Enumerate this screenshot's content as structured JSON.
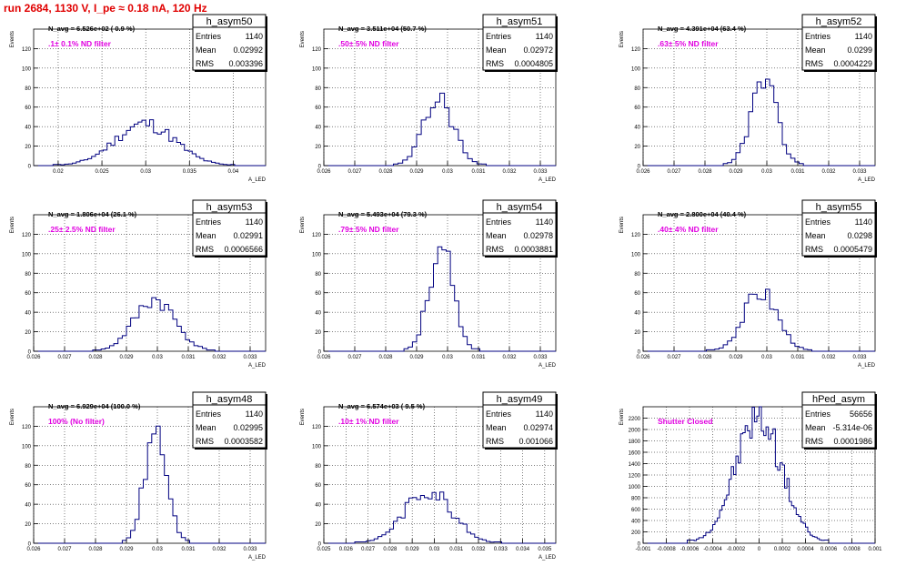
{
  "page_title": "run 2684,  1130 V, I_pe ≈ 0.18 nA, 120 Hz",
  "colors": {
    "title": "#e00000",
    "histogram": "#000080",
    "filter_label": "#e000e0",
    "grid": "#000000"
  },
  "chart_data": [
    {
      "type": "histogram",
      "name": "h_asym50",
      "ylabel": "Events",
      "xlabel": "A_LED",
      "stats": {
        "entries_label": "Entries",
        "entries": "1140",
        "mean_label": "Mean",
        "mean": "0.02992",
        "rms_label": "RMS",
        "rms": "0.003396"
      },
      "navg": "N_avg = 6.526e+02 ( 0.9 %)",
      "filter": ".1± 0.1% ND filter",
      "xlim": [
        0.0172,
        0.0437
      ],
      "ylim": [
        0,
        140
      ],
      "xticks": [
        0.02,
        0.025,
        0.03,
        0.035,
        0.04
      ],
      "xtick_labels": [
        "0.02",
        "0.025",
        "0.03",
        "0.035",
        "0.04"
      ],
      "yticks": [
        0,
        20,
        40,
        60,
        80,
        100,
        120
      ],
      "mean": 0.02992,
      "rms": 0.003396,
      "peak": 43,
      "bins": 60,
      "seed": 11
    },
    {
      "type": "histogram",
      "name": "h_asym51",
      "ylabel": "Events",
      "xlabel": "A_LED",
      "stats": {
        "entries_label": "Entries",
        "entries": "1140",
        "mean_label": "Mean",
        "mean": "0.02972",
        "rms_label": "RMS",
        "rms": "0.0004805"
      },
      "navg": "N_avg = 3.511e+04 (50.7 %)",
      "filter": ".50± 5% ND filter",
      "xlim": [
        0.026,
        0.0335
      ],
      "ylim": [
        0,
        140
      ],
      "xticks": [
        0.026,
        0.027,
        0.028,
        0.029,
        0.03,
        0.031,
        0.032,
        0.033
      ],
      "xtick_labels": [
        "0.026",
        "0.027",
        "0.028",
        "0.029",
        "0.03",
        "0.031",
        "0.032",
        "0.033"
      ],
      "yticks": [
        0,
        20,
        40,
        60,
        80,
        100,
        120
      ],
      "mean": 0.02972,
      "rms": 0.0004805,
      "peak": 68,
      "bins": 50,
      "seed": 23
    },
    {
      "type": "histogram",
      "name": "h_asym52",
      "ylabel": "Events",
      "xlabel": "A_LED",
      "stats": {
        "entries_label": "Entries",
        "entries": "1140",
        "mean_label": "Mean",
        "mean": "0.0299",
        "rms_label": "RMS",
        "rms": "0.0004229"
      },
      "navg": "N_avg = 4.391e+04 (63.4 %)",
      "filter": ".63± 5% ND filter",
      "xlim": [
        0.026,
        0.0335
      ],
      "ylim": [
        0,
        140
      ],
      "xticks": [
        0.026,
        0.027,
        0.028,
        0.029,
        0.03,
        0.031,
        0.032,
        0.033
      ],
      "xtick_labels": [
        "0.026",
        "0.027",
        "0.028",
        "0.029",
        "0.03",
        "0.031",
        "0.032",
        "0.033"
      ],
      "yticks": [
        0,
        20,
        40,
        60,
        80,
        100,
        120
      ],
      "mean": 0.0299,
      "rms": 0.0004229,
      "peak": 86,
      "bins": 55,
      "seed": 37
    },
    {
      "type": "histogram",
      "name": "h_asym53",
      "ylabel": "Events",
      "xlabel": "A_LED",
      "stats": {
        "entries_label": "Entries",
        "entries": "1140",
        "mean_label": "Mean",
        "mean": "0.02991",
        "rms_label": "RMS",
        "rms": "0.0006566"
      },
      "navg": "N_avg = 1.806e+04 (26.1 %)",
      "filter": ".25± 2.5% ND filter",
      "xlim": [
        0.026,
        0.0335
      ],
      "ylim": [
        0,
        140
      ],
      "xticks": [
        0.026,
        0.027,
        0.028,
        0.029,
        0.03,
        0.031,
        0.032,
        0.033
      ],
      "xtick_labels": [
        "0.026",
        "0.027",
        "0.028",
        "0.029",
        "0.03",
        "0.031",
        "0.032",
        "0.033"
      ],
      "yticks": [
        0,
        20,
        40,
        60,
        80,
        100,
        120
      ],
      "mean": 0.02991,
      "rms": 0.0006566,
      "peak": 53,
      "bins": 55,
      "seed": 41
    },
    {
      "type": "histogram",
      "name": "h_asym54",
      "ylabel": "Events",
      "xlabel": "A_LED",
      "stats": {
        "entries_label": "Entries",
        "entries": "1140",
        "mean_label": "Mean",
        "mean": "0.02978",
        "rms_label": "RMS",
        "rms": "0.0003881"
      },
      "navg": "N_avg = 5.493e+04 (79.3 %)",
      "filter": ".79± 5% ND filter",
      "xlim": [
        0.026,
        0.0335
      ],
      "ylim": [
        0,
        140
      ],
      "xticks": [
        0.026,
        0.027,
        0.028,
        0.029,
        0.03,
        0.031,
        0.032,
        0.033
      ],
      "xtick_labels": [
        "0.026",
        "0.027",
        "0.028",
        "0.029",
        "0.03",
        "0.031",
        "0.032",
        "0.033"
      ],
      "yticks": [
        0,
        20,
        40,
        60,
        80,
        100,
        120
      ],
      "mean": 0.02978,
      "rms": 0.0003881,
      "peak": 106,
      "bins": 55,
      "seed": 53
    },
    {
      "type": "histogram",
      "name": "h_asym55",
      "ylabel": "Events",
      "xlabel": "A_LED",
      "stats": {
        "entries_label": "Entries",
        "entries": "1140",
        "mean_label": "Mean",
        "mean": "0.0298",
        "rms_label": "RMS",
        "rms": "0.0005479"
      },
      "navg": "N_avg = 2.800e+04 (40.4 %)",
      "filter": ".40± 4% ND filter",
      "xlim": [
        0.026,
        0.0335
      ],
      "ylim": [
        0,
        140
      ],
      "xticks": [
        0.026,
        0.027,
        0.028,
        0.029,
        0.03,
        0.031,
        0.032,
        0.033
      ],
      "xtick_labels": [
        "0.026",
        "0.027",
        "0.028",
        "0.029",
        "0.03",
        "0.031",
        "0.032",
        "0.033"
      ],
      "yticks": [
        0,
        20,
        40,
        60,
        80,
        100,
        120
      ],
      "mean": 0.0298,
      "rms": 0.0005479,
      "peak": 61,
      "bins": 55,
      "seed": 67
    },
    {
      "type": "histogram",
      "name": "h_asym48",
      "ylabel": "Events",
      "xlabel": "A_LED",
      "stats": {
        "entries_label": "Entries",
        "entries": "1140",
        "mean_label": "Mean",
        "mean": "0.02995",
        "rms_label": "RMS",
        "rms": "0.0003582"
      },
      "navg": "N_avg = 6.929e+04 (100.0 %)",
      "filter": "100% (No filter)",
      "xlim": [
        0.026,
        0.0335
      ],
      "ylim": [
        0,
        140
      ],
      "xticks": [
        0.026,
        0.027,
        0.028,
        0.029,
        0.03,
        0.031,
        0.032,
        0.033
      ],
      "xtick_labels": [
        "0.026",
        "0.027",
        "0.028",
        "0.029",
        "0.03",
        "0.031",
        "0.032",
        "0.033"
      ],
      "yticks": [
        0,
        20,
        40,
        60,
        80,
        100,
        120
      ],
      "mean": 0.02995,
      "rms": 0.0003582,
      "peak": 115,
      "bins": 55,
      "seed": 71
    },
    {
      "type": "histogram",
      "name": "h_asym49",
      "ylabel": "Events",
      "xlabel": "A_LED",
      "stats": {
        "entries_label": "Entries",
        "entries": "1140",
        "mean_label": "Mean",
        "mean": "0.02974",
        "rms_label": "RMS",
        "rms": "0.001066"
      },
      "navg": "N_avg = 6.574e+03 ( 9.5 %)",
      "filter": ".10± 1% ND filter",
      "xlim": [
        0.025,
        0.0355
      ],
      "ylim": [
        0,
        140
      ],
      "xticks": [
        0.025,
        0.026,
        0.027,
        0.028,
        0.029,
        0.03,
        0.031,
        0.032,
        0.033,
        0.034,
        0.035
      ],
      "xtick_labels": [
        "0.025",
        "0.026",
        "0.027",
        "0.028",
        "0.029",
        "0.03",
        "0.031",
        "0.032",
        "0.033",
        "0.034",
        "0.035"
      ],
      "yticks": [
        0,
        20,
        40,
        60,
        80,
        100,
        120
      ],
      "mean": 0.02974,
      "rms": 0.001066,
      "peak": 55,
      "bins": 60,
      "seed": 83
    },
    {
      "type": "histogram",
      "name": "hPed_asym",
      "ylabel": "Events",
      "xlabel": "",
      "stats": {
        "entries_label": "Entries",
        "entries": "56656",
        "mean_label": "Mean",
        "mean": "-5.314e-06",
        "rms_label": "RMS",
        "rms": "0.0001986"
      },
      "navg": "",
      "filter": "Shutter Closed",
      "xlim": [
        -0.001,
        0.001
      ],
      "ylim": [
        0,
        2400
      ],
      "xticks": [
        -0.001,
        -0.0008,
        -0.0006,
        -0.0004,
        -0.0002,
        0,
        0.0002,
        0.0004,
        0.0006,
        0.0008,
        0.001
      ],
      "xtick_labels": [
        "-0.001",
        "-0.0008",
        "-0.0006",
        "-0.0004",
        "-0.0002",
        "0",
        "0.0002",
        "0.0004",
        "0.0006",
        "0.0008",
        "0.001"
      ],
      "yticks": [
        0,
        200,
        400,
        600,
        800,
        1000,
        1200,
        1400,
        1600,
        1800,
        2000,
        2200
      ],
      "mean": -5.3e-06,
      "rms": 0.0001986,
      "peak": 2220,
      "bins": 100,
      "seed": 97
    }
  ]
}
